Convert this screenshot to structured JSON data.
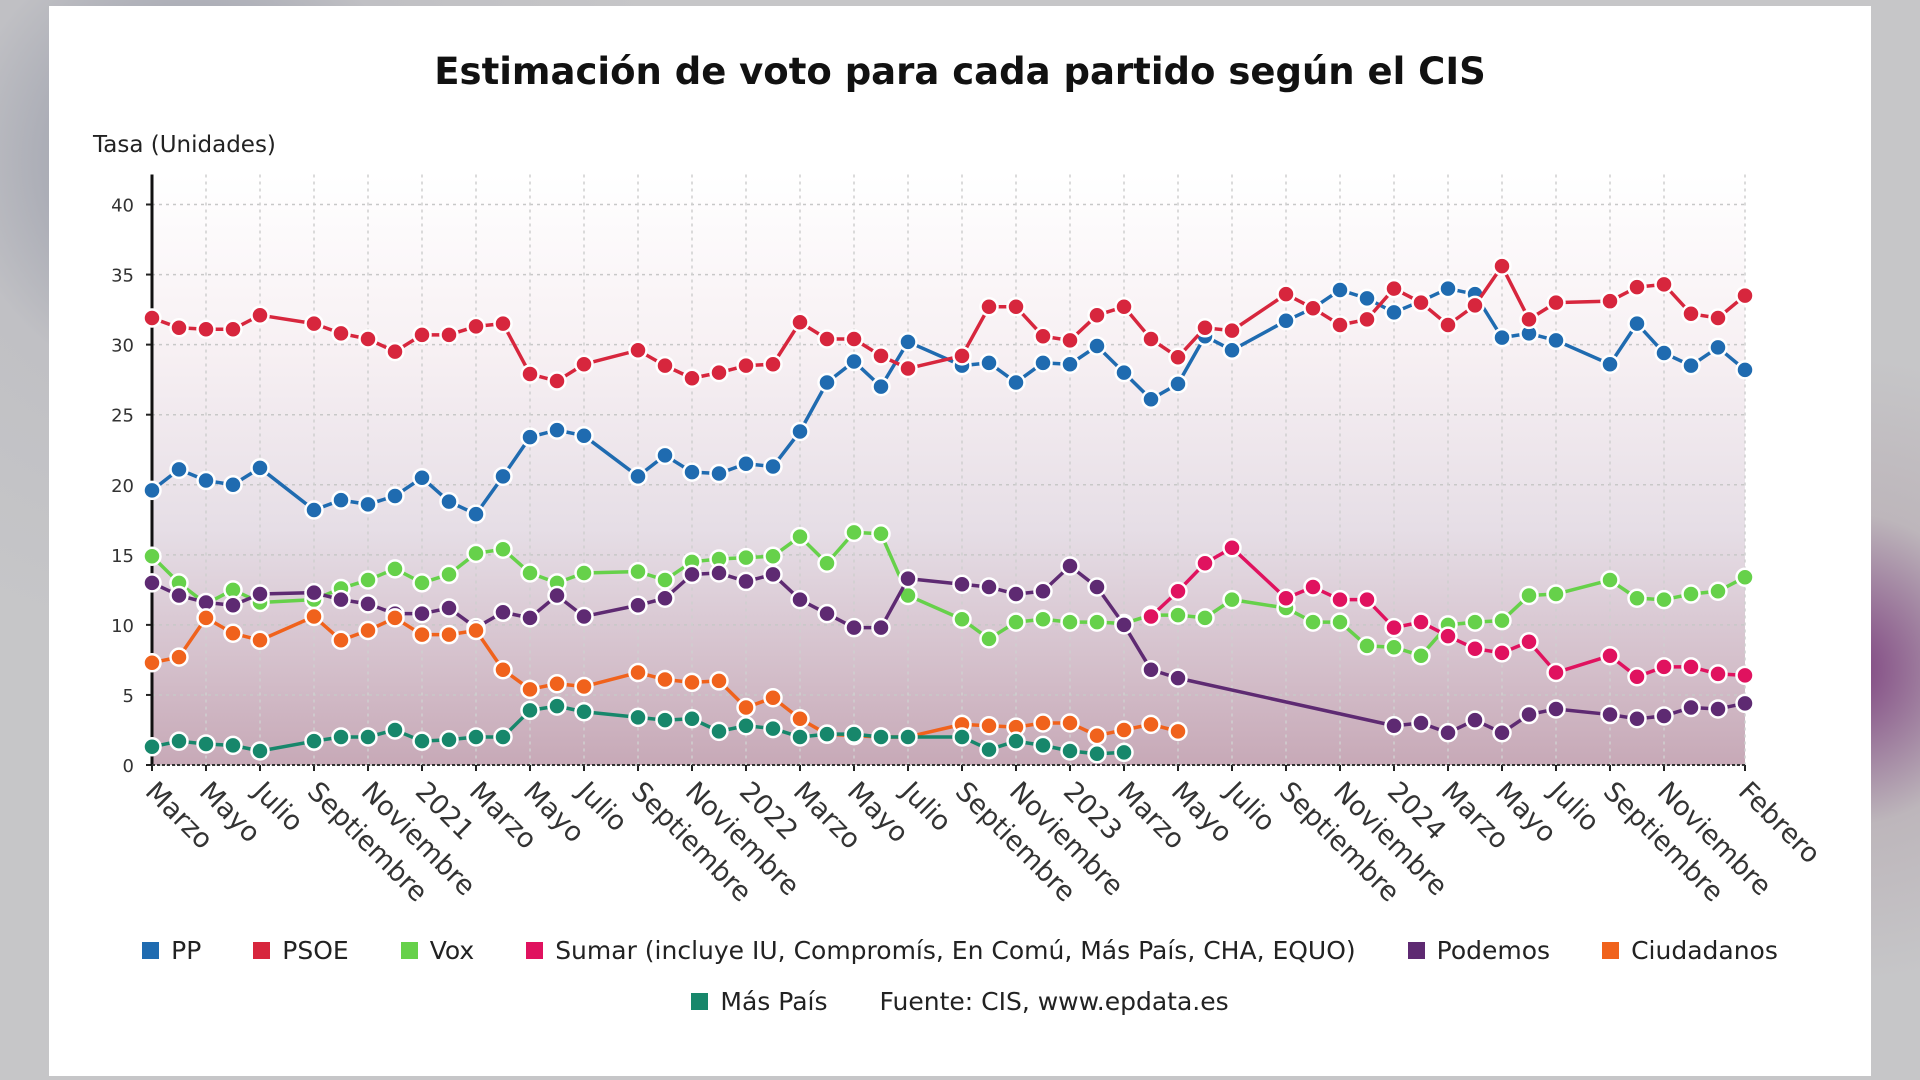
{
  "chart_data": {
    "type": "line",
    "title": "Estimación de voto para cada partido según el CIS",
    "ylabel": "Tasa (Unidades)",
    "xlabel": "",
    "ylim": [
      0,
      40
    ],
    "yticks": [
      0,
      5,
      10,
      15,
      20,
      25,
      30,
      35,
      40
    ],
    "grid": true,
    "legend_position": "bottom",
    "source": "Fuente: CIS, www.epdata.es",
    "x": [
      "2020-03",
      "2020-04",
      "2020-05",
      "2020-06",
      "2020-07",
      "2020-08",
      "2020-09",
      "2020-10",
      "2020-11",
      "2020-12",
      "2021-01",
      "2021-02",
      "2021-03",
      "2021-04",
      "2021-05",
      "2021-06",
      "2021-07",
      "2021-08",
      "2021-09",
      "2021-10",
      "2021-11",
      "2021-12",
      "2022-01",
      "2022-02",
      "2022-03",
      "2022-04",
      "2022-05",
      "2022-06",
      "2022-07",
      "2022-08",
      "2022-09",
      "2022-10",
      "2022-11",
      "2022-12",
      "2023-01",
      "2023-02",
      "2023-03",
      "2023-04",
      "2023-05",
      "2023-06",
      "2023-07",
      "2023-08",
      "2023-09",
      "2023-10",
      "2023-11",
      "2023-12",
      "2024-01",
      "2024-02",
      "2024-03",
      "2024-04",
      "2024-05",
      "2024-06",
      "2024-07",
      "2024-08",
      "2024-09",
      "2024-10",
      "2024-11",
      "2024-12",
      "2025-01",
      "2025-02"
    ],
    "xtick_labels": [
      {
        "month": "2020-03",
        "label": "Marzo"
      },
      {
        "month": "2020-05",
        "label": "Mayo"
      },
      {
        "month": "2020-07",
        "label": "Julio"
      },
      {
        "month": "2020-09",
        "label": "Septiembre"
      },
      {
        "month": "2020-11",
        "label": "Noviembre"
      },
      {
        "month": "2021-01",
        "label": "2021"
      },
      {
        "month": "2021-03",
        "label": "Marzo"
      },
      {
        "month": "2021-05",
        "label": "Mayo"
      },
      {
        "month": "2021-07",
        "label": "Julio"
      },
      {
        "month": "2021-09",
        "label": "Septiembre"
      },
      {
        "month": "2021-11",
        "label": "Noviembre"
      },
      {
        "month": "2022-01",
        "label": "2022"
      },
      {
        "month": "2022-03",
        "label": "Marzo"
      },
      {
        "month": "2022-05",
        "label": "Mayo"
      },
      {
        "month": "2022-07",
        "label": "Julio"
      },
      {
        "month": "2022-09",
        "label": "Septiembre"
      },
      {
        "month": "2022-11",
        "label": "Noviembre"
      },
      {
        "month": "2023-01",
        "label": "2023"
      },
      {
        "month": "2023-03",
        "label": "Marzo"
      },
      {
        "month": "2023-05",
        "label": "Mayo"
      },
      {
        "month": "2023-07",
        "label": "Julio"
      },
      {
        "month": "2023-09",
        "label": "Septiembre"
      },
      {
        "month": "2023-11",
        "label": "Noviembre"
      },
      {
        "month": "2024-01",
        "label": "2024"
      },
      {
        "month": "2024-03",
        "label": "Marzo"
      },
      {
        "month": "2024-05",
        "label": "Mayo"
      },
      {
        "month": "2024-07",
        "label": "Julio"
      },
      {
        "month": "2024-09",
        "label": "Septiembre"
      },
      {
        "month": "2024-11",
        "label": "Noviembre"
      },
      {
        "month": "2025-02",
        "label": "Febrero"
      }
    ],
    "series": [
      {
        "name": "PP",
        "color": "#1f6bb0",
        "values": [
          19.6,
          21.1,
          20.3,
          20.0,
          21.2,
          null,
          18.2,
          18.9,
          18.6,
          19.2,
          20.5,
          18.8,
          17.9,
          20.6,
          23.4,
          23.9,
          23.5,
          null,
          20.6,
          22.1,
          20.9,
          20.8,
          21.5,
          21.3,
          23.8,
          27.3,
          28.8,
          27.0,
          30.2,
          null,
          28.5,
          28.7,
          27.3,
          28.7,
          28.6,
          29.9,
          28.0,
          26.1,
          27.2,
          30.6,
          29.6,
          null,
          31.7,
          32.6,
          33.9,
          33.3,
          32.3,
          33.1,
          34.0,
          33.6,
          30.5,
          30.8,
          30.3,
          null,
          28.6,
          31.5,
          29.4,
          28.5,
          29.8,
          28.2
        ]
      },
      {
        "name": "PSOE",
        "color": "#d7263d",
        "values": [
          31.9,
          31.2,
          31.1,
          31.1,
          32.1,
          null,
          31.5,
          30.8,
          30.4,
          29.5,
          30.7,
          30.7,
          31.3,
          31.5,
          27.9,
          27.4,
          28.6,
          null,
          29.6,
          28.5,
          27.6,
          28.0,
          28.5,
          28.6,
          31.6,
          30.4,
          30.4,
          29.2,
          28.3,
          null,
          29.2,
          32.7,
          32.7,
          30.6,
          30.3,
          32.1,
          32.7,
          30.4,
          29.1,
          31.2,
          31.0,
          null,
          33.6,
          32.6,
          31.4,
          31.8,
          34.0,
          33.0,
          31.4,
          32.8,
          35.6,
          31.8,
          33.0,
          null,
          33.1,
          34.1,
          34.3,
          32.2,
          31.9,
          33.5
        ]
      },
      {
        "name": "Vox",
        "color": "#66d14a",
        "values": [
          14.9,
          13.0,
          11.5,
          12.5,
          11.6,
          null,
          11.8,
          12.6,
          13.2,
          14.0,
          13.0,
          13.6,
          15.1,
          15.4,
          13.7,
          13.0,
          13.7,
          null,
          13.8,
          13.2,
          14.5,
          14.7,
          14.8,
          14.9,
          16.3,
          14.4,
          16.6,
          16.5,
          12.1,
          null,
          10.4,
          9.0,
          10.2,
          10.4,
          10.2,
          10.2,
          10.1,
          10.7,
          10.7,
          10.5,
          11.8,
          null,
          11.2,
          10.2,
          10.2,
          8.5,
          8.4,
          7.8,
          10.0,
          10.2,
          10.3,
          12.1,
          12.2,
          null,
          13.2,
          11.9,
          11.8,
          12.2,
          12.4,
          13.4
        ]
      },
      {
        "name": "Sumar (incluye IU, Compromís, En Comú, Más País, CHA, EQUO)",
        "color": "#e0125f",
        "values": [
          null,
          null,
          null,
          null,
          null,
          null,
          null,
          null,
          null,
          null,
          null,
          null,
          null,
          null,
          null,
          null,
          null,
          null,
          null,
          null,
          null,
          null,
          null,
          null,
          null,
          null,
          null,
          null,
          null,
          null,
          null,
          null,
          null,
          null,
          null,
          null,
          null,
          10.6,
          12.4,
          14.4,
          15.5,
          null,
          11.9,
          12.7,
          11.8,
          11.8,
          9.8,
          10.2,
          9.2,
          8.3,
          8.0,
          8.8,
          6.6,
          null,
          7.8,
          6.3,
          7.0,
          7.0,
          6.5,
          6.4
        ]
      },
      {
        "name": "Podemos",
        "color": "#5e2a72",
        "values": [
          13.0,
          12.1,
          11.6,
          11.4,
          12.2,
          null,
          12.3,
          11.8,
          11.5,
          10.8,
          10.8,
          11.2,
          9.8,
          10.9,
          10.5,
          12.1,
          10.6,
          null,
          11.4,
          11.9,
          13.6,
          13.7,
          13.1,
          13.6,
          11.8,
          10.8,
          9.8,
          9.8,
          13.3,
          null,
          12.9,
          12.7,
          12.2,
          12.4,
          14.2,
          12.7,
          10.0,
          6.8,
          6.2,
          null,
          null,
          null,
          null,
          null,
          null,
          null,
          2.8,
          3.0,
          2.3,
          3.2,
          2.3,
          3.6,
          4.0,
          null,
          3.6,
          3.3,
          3.5,
          4.1,
          4.0,
          4.4
        ]
      },
      {
        "name": "Ciudadanos",
        "color": "#f0621c",
        "values": [
          7.3,
          7.7,
          10.5,
          9.4,
          8.9,
          null,
          10.6,
          8.9,
          9.6,
          10.5,
          9.3,
          9.3,
          9.6,
          6.8,
          5.4,
          5.8,
          5.6,
          null,
          6.6,
          6.1,
          5.9,
          6.0,
          4.1,
          4.8,
          3.3,
          2.2,
          2.1,
          2.0,
          2.0,
          null,
          2.9,
          2.8,
          2.7,
          3.0,
          3.0,
          2.1,
          2.5,
          2.9,
          2.4,
          null,
          null,
          null,
          null,
          null,
          null,
          null,
          null,
          null,
          null,
          null,
          null,
          null,
          null,
          null,
          null,
          null,
          null,
          null,
          null,
          null
        ]
      },
      {
        "name": "Más País",
        "color": "#17876b",
        "values": [
          1.3,
          1.7,
          1.5,
          1.4,
          1.0,
          null,
          1.7,
          2.0,
          2.0,
          2.5,
          1.7,
          1.8,
          2.0,
          2.0,
          3.9,
          4.2,
          3.8,
          null,
          3.4,
          3.2,
          3.3,
          2.4,
          2.8,
          2.6,
          2.0,
          2.2,
          2.2,
          2.0,
          2.0,
          null,
          2.0,
          1.1,
          1.7,
          1.4,
          1.0,
          0.8,
          0.9,
          null,
          null,
          null,
          null,
          null,
          null,
          null,
          null,
          null,
          null,
          null,
          null,
          null,
          null,
          null,
          null,
          null,
          null,
          null,
          null,
          null,
          null,
          null
        ]
      }
    ]
  }
}
